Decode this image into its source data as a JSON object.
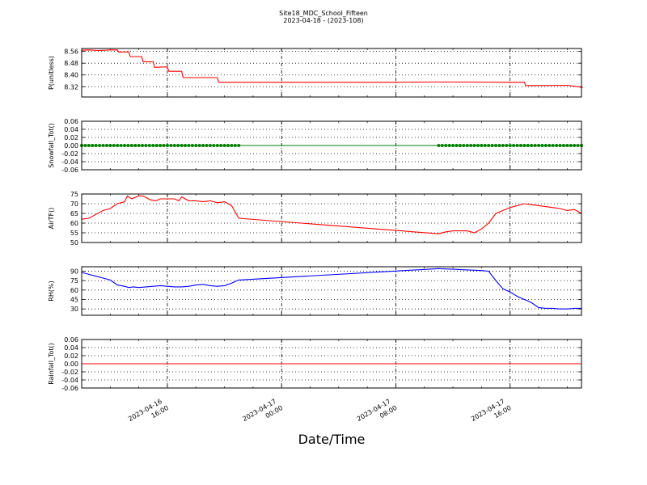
{
  "title": "Site18_MDC_School_Fifteen",
  "subtitle": "2023-04-18 - (2023-108)",
  "xlabel": "Date/Time",
  "x_tick_labels": [
    [
      "2023-04-16",
      "16:00"
    ],
    [
      "2023-04-17",
      "00:00"
    ],
    [
      "2023-04-17",
      "08:00"
    ],
    [
      "2023-04-17",
      "16:00"
    ]
  ],
  "chart_data": [
    {
      "type": "line",
      "ylabel": "P(unitless)",
      "ylim": [
        8.25,
        8.58
      ],
      "yticks": [
        "8.56",
        "8.48",
        "8.40",
        "8.32"
      ],
      "ytick_values": [
        8.56,
        8.48,
        8.4,
        8.32
      ],
      "color": "#ff0000",
      "marker": "none",
      "x": [
        10.0,
        10.5,
        11.2,
        12.0,
        12.5,
        12.6,
        13.3,
        13.4,
        14.2,
        14.3,
        15.0,
        15.1,
        16.0,
        16.1,
        17.0,
        17.1,
        18.0,
        18.1,
        19.0,
        19.5,
        19.6,
        32.0,
        34.0,
        35.0,
        37.0,
        40.0,
        40.5,
        41.0,
        41.1,
        42.0,
        44.0,
        45.1
      ],
      "y": [
        8.568,
        8.57,
        8.566,
        8.57,
        8.57,
        8.556,
        8.557,
        8.525,
        8.525,
        8.49,
        8.49,
        8.452,
        8.455,
        8.425,
        8.425,
        8.382,
        8.382,
        8.382,
        8.382,
        8.382,
        8.35,
        8.35,
        8.352,
        8.352,
        8.352,
        8.35,
        8.35,
        8.35,
        8.328,
        8.328,
        8.33,
        8.315
      ]
    },
    {
      "type": "line",
      "ylabel": "Snowfall_Tot()",
      "ylim": [
        -0.06,
        0.06
      ],
      "yticks": [
        "0.06",
        "0.04",
        "0.02",
        "0.00",
        "-0.02",
        "-0.04",
        "-0.06"
      ],
      "ytick_values": [
        0.06,
        0.04,
        0.02,
        0.0,
        -0.02,
        -0.04,
        -0.06
      ],
      "color": "#008000",
      "marker": "dot",
      "x": [
        10.0,
        21.0,
        35.0,
        45.0
      ],
      "y": [
        0,
        0,
        0,
        0
      ],
      "marker_ranges": [
        [
          10.0,
          21.0
        ],
        [
          35.0,
          45.0
        ]
      ]
    },
    {
      "type": "line",
      "ylabel": "AirTF()",
      "ylim": [
        50,
        75
      ],
      "yticks": [
        "75",
        "70",
        "65",
        "60",
        "55",
        "50"
      ],
      "ytick_values": [
        75,
        70,
        65,
        60,
        55,
        50
      ],
      "color": "#ff0000",
      "marker": "none",
      "x": [
        10.0,
        10.5,
        11.0,
        11.5,
        12.0,
        12.5,
        13.0,
        13.2,
        13.5,
        14.0,
        14.3,
        14.8,
        15.2,
        15.5,
        16.0,
        16.5,
        16.8,
        17.0,
        17.5,
        18.0,
        18.5,
        19.0,
        19.5,
        20.0,
        20.5,
        21.0,
        35.0,
        35.5,
        36.0,
        36.5,
        37.0,
        37.5,
        38.0,
        38.5,
        39.0,
        39.5,
        40.0,
        40.5,
        41.0,
        41.5,
        42.0,
        42.5,
        43.0,
        43.5,
        44.0,
        44.5,
        45.0
      ],
      "y": [
        62,
        62.5,
        64.5,
        66.5,
        67.5,
        70,
        71,
        74,
        72.5,
        74,
        74,
        72,
        71.5,
        72.5,
        72.5,
        72.5,
        71.5,
        73.5,
        71.5,
        71.5,
        71,
        71.5,
        70.5,
        71,
        69,
        62.5,
        54.5,
        55.5,
        56,
        56,
        56,
        55,
        57,
        60,
        65,
        66.5,
        68,
        69,
        70,
        69.5,
        69,
        68.5,
        68,
        67.5,
        66.5,
        67,
        65
      ]
    },
    {
      "type": "line",
      "ylabel": "RH(%)",
      "ylim": [
        20,
        97
      ],
      "yticks": [
        "90",
        "75",
        "60",
        "45",
        "30"
      ],
      "ytick_values": [
        90,
        75,
        60,
        45,
        30
      ],
      "color": "#0000ff",
      "marker": "none",
      "x": [
        10.0,
        10.5,
        11.0,
        11.5,
        12.0,
        12.5,
        13.0,
        13.3,
        13.6,
        14.0,
        14.5,
        15.0,
        15.5,
        16.0,
        16.5,
        17.0,
        17.5,
        18.0,
        18.5,
        19.0,
        19.5,
        20.0,
        20.5,
        21.0,
        35.0,
        36.0,
        37.0,
        38.0,
        38.5,
        39.0,
        39.5,
        40.0,
        40.5,
        41.0,
        41.5,
        42.0,
        42.5,
        43.0,
        43.5,
        44.0,
        44.5,
        45.0
      ],
      "y": [
        88,
        85,
        82,
        79,
        76,
        68,
        66,
        64,
        65,
        64,
        65,
        66,
        67,
        66,
        65,
        65,
        66,
        68,
        69,
        67,
        66,
        67,
        71,
        76,
        94,
        93,
        92,
        91,
        90,
        75,
        62,
        57,
        50,
        45,
        40,
        32,
        31,
        31,
        30,
        30,
        31,
        31
      ]
    },
    {
      "type": "line",
      "ylabel": "Rainfall_Tot()",
      "ylim": [
        -0.06,
        0.06
      ],
      "yticks": [
        "0.06",
        "0.04",
        "0.02",
        "0.00",
        "-0.02",
        "-0.04",
        "-0.06"
      ],
      "ytick_values": [
        0.06,
        0.04,
        0.02,
        0.0,
        -0.02,
        -0.04,
        -0.06
      ],
      "color": "#ff0000",
      "marker": "none",
      "x": [
        10.0,
        45.0
      ],
      "y": [
        0,
        0
      ]
    }
  ]
}
